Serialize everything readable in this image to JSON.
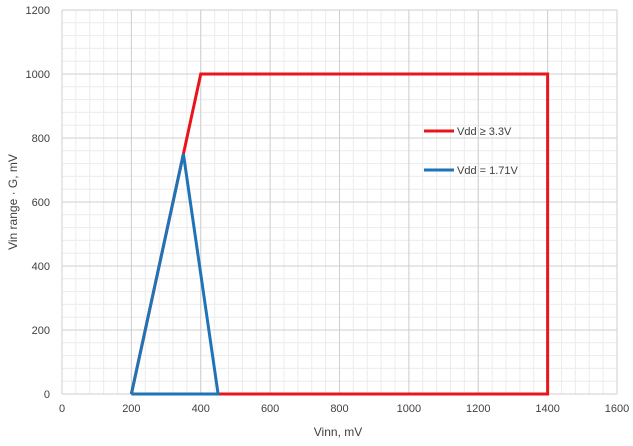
{
  "chart_data": {
    "type": "line",
    "xlabel": "Vinn, mV",
    "ylabel": "Vin range · G, mV",
    "xlim": [
      0,
      1600
    ],
    "ylim": [
      0,
      1200
    ],
    "x_ticks": [
      0,
      200,
      400,
      600,
      800,
      1000,
      1200,
      1400,
      1600
    ],
    "y_ticks": [
      0,
      200,
      400,
      600,
      800,
      1000,
      1200
    ],
    "x_tick_labels": [
      "0",
      "200",
      "400",
      "600",
      "800",
      "1000",
      "1200",
      "1400",
      "1600"
    ],
    "y_tick_labels": [
      "0",
      "200",
      "400",
      "600",
      "800",
      "1000",
      "1200"
    ],
    "grid": true,
    "minor_grid": true,
    "legend_position": "right",
    "series": [
      {
        "name": "Vdd ≥ 3.3V",
        "color": "#e8161b",
        "x": [
          200,
          400,
          1400,
          1400,
          200
        ],
        "y": [
          0,
          1000,
          1000,
          0,
          0
        ]
      },
      {
        "name": "Vdd = 1.71V",
        "color": "#1f73b7",
        "x": [
          200,
          350,
          450,
          200
        ],
        "y": [
          0,
          750,
          0,
          0
        ]
      }
    ]
  }
}
